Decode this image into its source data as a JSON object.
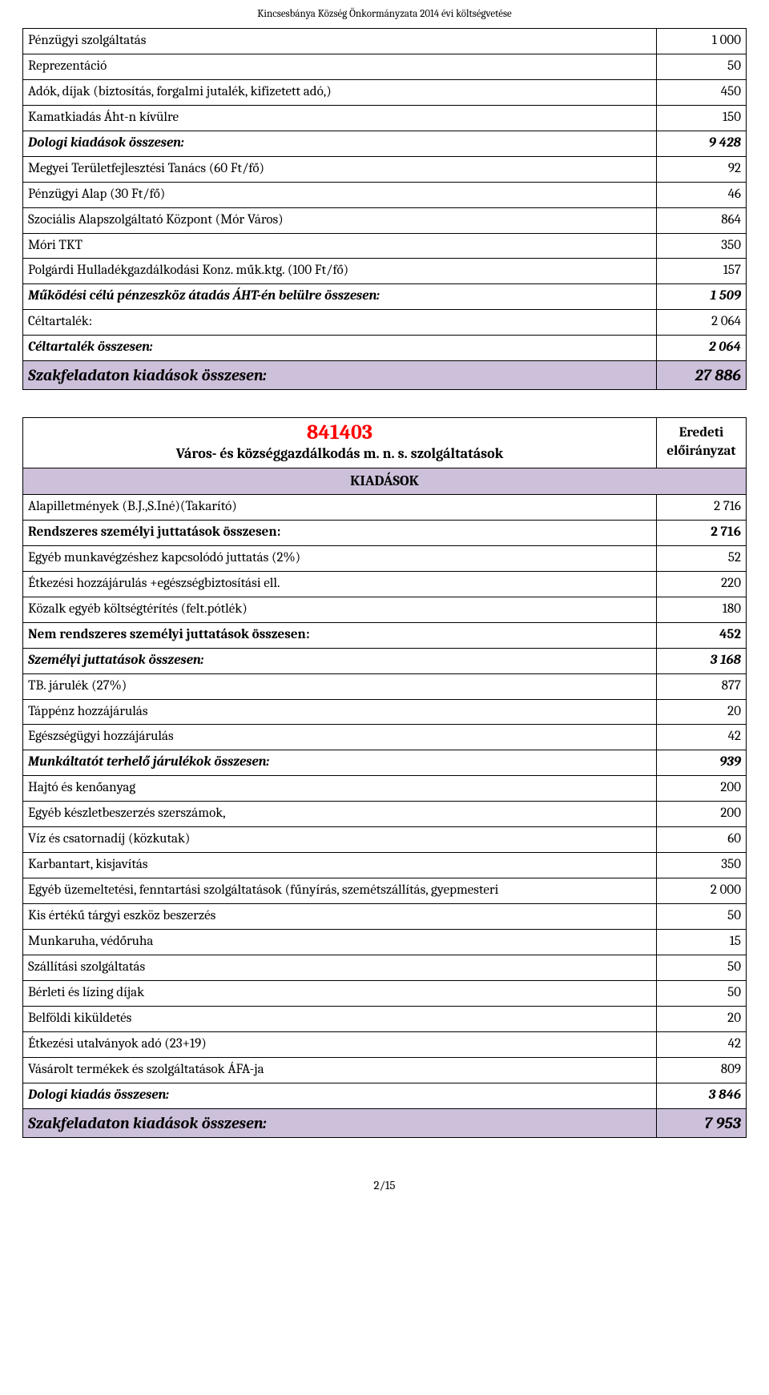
{
  "page_header": "Kincsesbánya Község Önkormányzata 2014 évi költségvetése",
  "footer": "2/15",
  "colors": {
    "highlight_bg": "#ccc0da",
    "code_color": "#ff0000",
    "border": "#000000",
    "text": "#000000",
    "background": "#ffffff"
  },
  "table1": {
    "rows": [
      {
        "label": "Pénzügyi szolgáltatás",
        "value": "1 000",
        "bold": false,
        "italic": false,
        "hl": false
      },
      {
        "label": "Reprezentáció",
        "value": "50",
        "bold": false,
        "italic": false,
        "hl": false
      },
      {
        "label": "Adók, díjak (biztosítás, forgalmi jutalék, kifizetett adó,)",
        "value": "450",
        "bold": false,
        "italic": false,
        "hl": false
      },
      {
        "label": "Kamatkiadás Áht-n kívülre",
        "value": "150",
        "bold": false,
        "italic": false,
        "hl": false
      },
      {
        "label": "Dologi kiadások összesen:",
        "value": "9 428",
        "bold": true,
        "italic": true,
        "hl": false
      },
      {
        "label": "Megyei Területfejlesztési Tanács (60 Ft/fő)",
        "value": "92",
        "bold": false,
        "italic": false,
        "hl": false
      },
      {
        "label": "Pénzügyi Alap (30 Ft/fő)",
        "value": "46",
        "bold": false,
        "italic": false,
        "hl": false
      },
      {
        "label": "Szociális Alapszolgáltató Központ (Mór Város)",
        "value": "864",
        "bold": false,
        "italic": false,
        "hl": false
      },
      {
        "label": "Móri TKT",
        "value": "350",
        "bold": false,
        "italic": false,
        "hl": false
      },
      {
        "label": "Polgárdi Hulladékgazdálkodási Konz. műk.ktg. (100 Ft/fő)",
        "value": "157",
        "bold": false,
        "italic": false,
        "hl": false
      },
      {
        "label": "Működési célú pénzeszköz átadás ÁHT-én belülre összesen:",
        "value": "1 509",
        "bold": true,
        "italic": true,
        "hl": false
      },
      {
        "label": "Céltartalék:",
        "value": "2 064",
        "bold": false,
        "italic": false,
        "hl": false
      },
      {
        "label": "Céltartalék összesen:",
        "value": "2 064",
        "bold": true,
        "italic": true,
        "hl": false
      },
      {
        "label": "Szakfeladaton kiadások összesen:",
        "value": "27 886",
        "bold": true,
        "italic": true,
        "hl": true,
        "big": true
      }
    ]
  },
  "section": {
    "code": "841403",
    "subtitle": "Város- és községgazdálkodás m. n. s. szolgáltatások",
    "eredeti_l1": "Eredeti",
    "eredeti_l2": "előirányzat",
    "kiadasok": "KIADÁSOK"
  },
  "table2": {
    "rows": [
      {
        "label": "Alapilletmények (B.J.,S.Iné)(Takarító)",
        "value": "2 716",
        "bold": false,
        "italic": false,
        "hl": false
      },
      {
        "label": "Rendszeres személyi juttatások összesen:",
        "value": "2 716",
        "bold": true,
        "italic": false,
        "hl": false
      },
      {
        "label": "Egyéb munkavégzéshez kapcsolódó juttatás (2%)",
        "value": "52",
        "bold": false,
        "italic": false,
        "hl": false
      },
      {
        "label": "Étkezési hozzájárulás +egészségbiztosítási ell.",
        "value": "220",
        "bold": false,
        "italic": false,
        "hl": false
      },
      {
        "label": "Közalk egyéb költségtérítés (felt.pótlék)",
        "value": "180",
        "bold": false,
        "italic": false,
        "hl": false
      },
      {
        "label": "Nem rendszeres személyi juttatások összesen:",
        "value": "452",
        "bold": true,
        "italic": false,
        "hl": false
      },
      {
        "label": "Személyi juttatások összesen:",
        "value": "3 168",
        "bold": true,
        "italic": true,
        "hl": false
      },
      {
        "label": "TB. járulék (27%)",
        "value": "877",
        "bold": false,
        "italic": false,
        "hl": false
      },
      {
        "label": "Táppénz hozzájárulás",
        "value": "20",
        "bold": false,
        "italic": false,
        "hl": false
      },
      {
        "label": "Egészségügyi hozzájárulás",
        "value": "42",
        "bold": false,
        "italic": false,
        "hl": false
      },
      {
        "label": "Munkáltatót terhelő járulékok összesen:",
        "value": "939",
        "bold": true,
        "italic": true,
        "hl": false
      },
      {
        "label": "Hajtó és kenőanyag",
        "value": "200",
        "bold": false,
        "italic": false,
        "hl": false
      },
      {
        "label": "Egyéb készletbeszerzés szerszámok,",
        "value": "200",
        "bold": false,
        "italic": false,
        "hl": false
      },
      {
        "label": "Víz és csatornadíj (közkutak)",
        "value": "60",
        "bold": false,
        "italic": false,
        "hl": false
      },
      {
        "label": "Karbantart, kisjavítás",
        "value": "350",
        "bold": false,
        "italic": false,
        "hl": false
      },
      {
        "label": "Egyéb üzemeltetési, fenntartási szolgáltatások (fűnyírás, szemétszállítás, gyepmesteri",
        "value": "2 000",
        "bold": false,
        "italic": false,
        "hl": false
      },
      {
        "label": "Kis értékű tárgyi eszköz beszerzés",
        "value": "50",
        "bold": false,
        "italic": false,
        "hl": false
      },
      {
        "label": "Munkaruha, védőruha",
        "value": "15",
        "bold": false,
        "italic": false,
        "hl": false
      },
      {
        "label": "Szállítási szolgáltatás",
        "value": "50",
        "bold": false,
        "italic": false,
        "hl": false
      },
      {
        "label": "Bérleti és lízing díjak",
        "value": "50",
        "bold": false,
        "italic": false,
        "hl": false
      },
      {
        "label": "Belföldi kiküldetés",
        "value": "20",
        "bold": false,
        "italic": false,
        "hl": false
      },
      {
        "label": "Étkezési utalványok adó (23+19)",
        "value": "42",
        "bold": false,
        "italic": false,
        "hl": false
      },
      {
        "label": "Vásárolt termékek és szolgáltatások ÁFA-ja",
        "value": "809",
        "bold": false,
        "italic": false,
        "hl": false
      },
      {
        "label": "Dologi kiadás összesen:",
        "value": "3 846",
        "bold": true,
        "italic": true,
        "hl": false
      },
      {
        "label": "Szakfeladaton kiadások összesen:",
        "value": "7 953",
        "bold": true,
        "italic": true,
        "hl": true,
        "big": true
      }
    ]
  }
}
